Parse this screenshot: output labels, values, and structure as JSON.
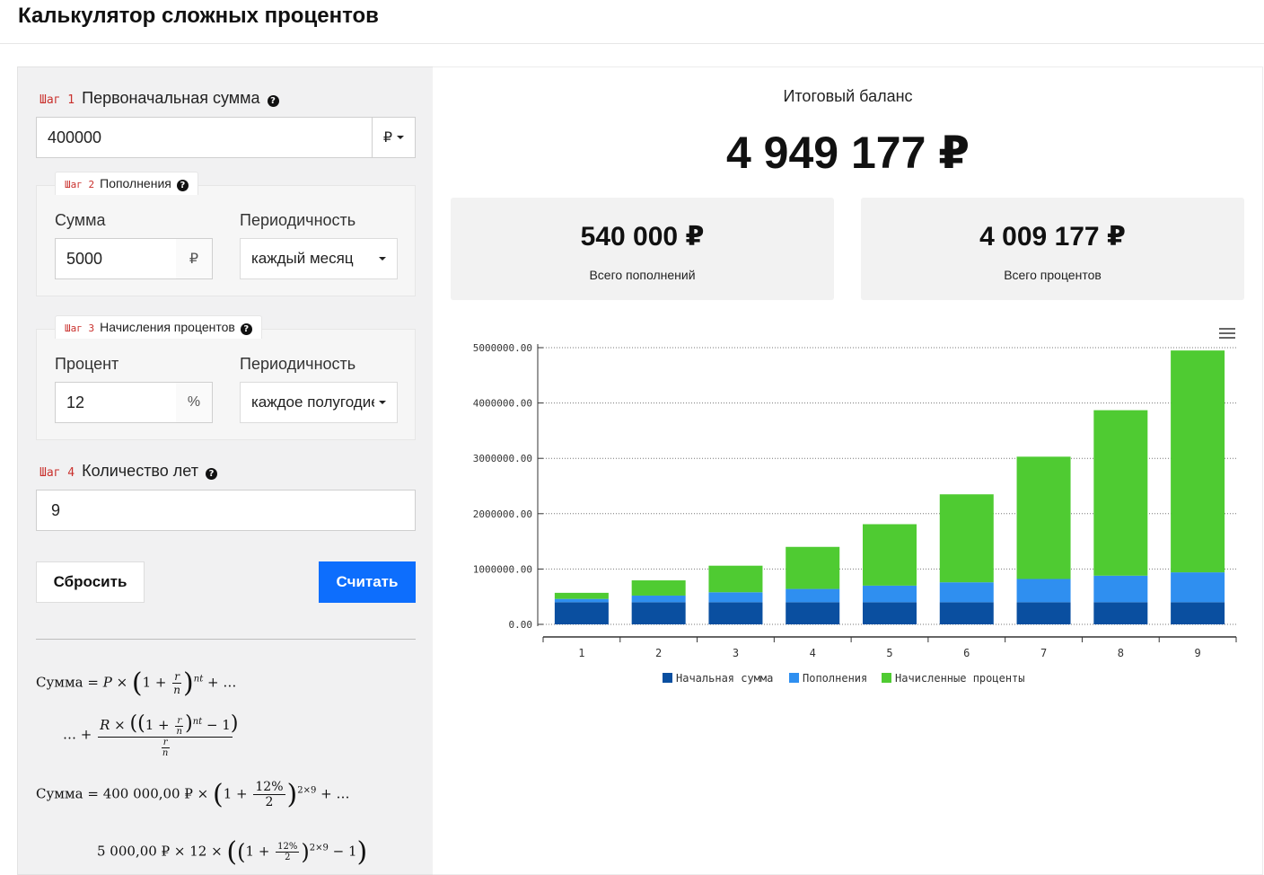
{
  "title": "Калькулятор сложных процентов",
  "step1": {
    "step": "Шаг 1",
    "label": "Первоначальная сумма",
    "value": "400000",
    "currency": "₽"
  },
  "step2": {
    "step": "Шаг 2",
    "label": "Пополнения",
    "amount_label": "Сумма",
    "amount_value": "5000",
    "amount_suffix": "₽",
    "period_label": "Периодичность",
    "period_value": "каждый месяц"
  },
  "step3": {
    "step": "Шаг 3",
    "label": "Начисления процентов",
    "rate_label": "Процент",
    "rate_value": "12",
    "rate_suffix": "%",
    "period_label": "Периодичность",
    "period_value": "каждое полугодие"
  },
  "step4": {
    "step": "Шаг 4",
    "label": "Количество лет",
    "value": "9"
  },
  "buttons": {
    "reset": "Сбросить",
    "calculate": "Считать"
  },
  "formula": {
    "line1_lhs": "Сумма",
    "line3_lhs": "Сумма",
    "principal": "400 000,00 ₽",
    "rate": "12%",
    "n": "2",
    "exp": "2×9",
    "deposit": "5 000,00 ₽",
    "months": "12"
  },
  "result": {
    "title": "Итоговый баланс",
    "total": "4 949 177 ₽",
    "deposits_total": "540 000 ₽",
    "deposits_label": "Всего пополнений",
    "interest_total": "4 009 177 ₽",
    "interest_label": "Всего процентов"
  },
  "chart_data": {
    "type": "bar",
    "stacked": true,
    "categories": [
      "1",
      "2",
      "3",
      "4",
      "5",
      "6",
      "7",
      "8",
      "9"
    ],
    "series": [
      {
        "name": "Начальная сумма",
        "color": "#0a4fa0",
        "values": [
          400000,
          400000,
          400000,
          400000,
          400000,
          400000,
          400000,
          400000,
          400000
        ]
      },
      {
        "name": "Пополнения",
        "color": "#2f8ff0",
        "values": [
          60000,
          120000,
          180000,
          240000,
          300000,
          360000,
          420000,
          480000,
          540000
        ]
      },
      {
        "name": "Начисленные проценты",
        "color": "#4fcb32",
        "values": [
          110000,
          275000,
          480000,
          760000,
          1110000,
          1590000,
          2210000,
          2990000,
          4009177
        ]
      }
    ],
    "y_ticks": [
      "0.00",
      "1000000.00",
      "2000000.00",
      "3000000.00",
      "4000000.00",
      "5000000.00"
    ],
    "ylim": [
      0,
      5000000
    ],
    "grid": true,
    "legend": "bottom"
  }
}
